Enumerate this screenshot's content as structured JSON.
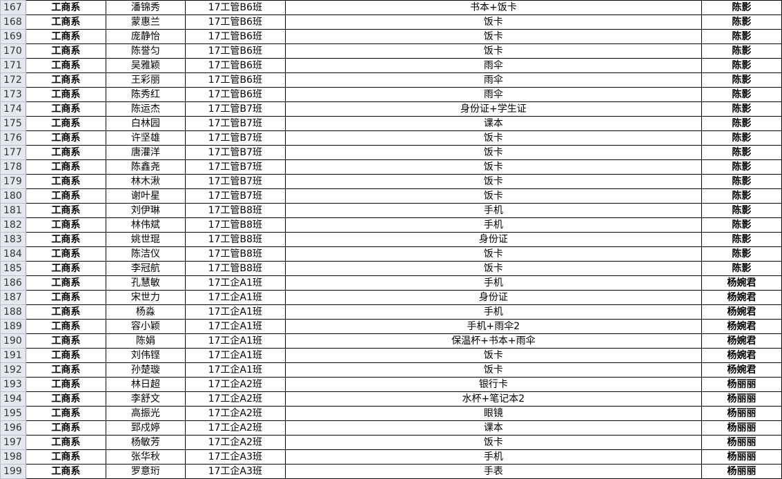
{
  "sheet": {
    "rows": [
      {
        "num": "167",
        "dept": "工商系",
        "name": "潘锦秀",
        "class": "17工管B6班",
        "item": "书本+饭卡",
        "staff": "陈影"
      },
      {
        "num": "168",
        "dept": "工商系",
        "name": "蒙惠兰",
        "class": "17工管B6班",
        "item": "饭卡",
        "staff": "陈影"
      },
      {
        "num": "169",
        "dept": "工商系",
        "name": "庞静怡",
        "class": "17工管B6班",
        "item": "饭卡",
        "staff": "陈影"
      },
      {
        "num": "170",
        "dept": "工商系",
        "name": "陈誉匀",
        "class": "17工管B6班",
        "item": "饭卡",
        "staff": "陈影"
      },
      {
        "num": "171",
        "dept": "工商系",
        "name": "吴雅颖",
        "class": "17工管B6班",
        "item": "雨伞",
        "staff": "陈影"
      },
      {
        "num": "172",
        "dept": "工商系",
        "name": "王彩丽",
        "class": "17工管B6班",
        "item": "雨伞",
        "staff": "陈影"
      },
      {
        "num": "173",
        "dept": "工商系",
        "name": "陈秀红",
        "class": "17工管B6班",
        "item": "雨伞",
        "staff": "陈影"
      },
      {
        "num": "174",
        "dept": "工商系",
        "name": "陈运杰",
        "class": "17工管B7班",
        "item": "身份证+学生证",
        "staff": "陈影"
      },
      {
        "num": "175",
        "dept": "工商系",
        "name": "白林园",
        "class": "17工管B7班",
        "item": "课本",
        "staff": "陈影"
      },
      {
        "num": "176",
        "dept": "工商系",
        "name": "许坚雄",
        "class": "17工管B7班",
        "item": "饭卡",
        "staff": "陈影"
      },
      {
        "num": "177",
        "dept": "工商系",
        "name": "唐灌洋",
        "class": "17工管B7班",
        "item": "饭卡",
        "staff": "陈影"
      },
      {
        "num": "178",
        "dept": "工商系",
        "name": "陈鑫尧",
        "class": "17工管B7班",
        "item": "饭卡",
        "staff": "陈影"
      },
      {
        "num": "179",
        "dept": "工商系",
        "name": "林木湫",
        "class": "17工管B7班",
        "item": "饭卡",
        "staff": "陈影"
      },
      {
        "num": "180",
        "dept": "工商系",
        "name": "谢叶星",
        "class": "17工管B7班",
        "item": "饭卡",
        "staff": "陈影"
      },
      {
        "num": "181",
        "dept": "工商系",
        "name": "刘伊琳",
        "class": "17工管B8班",
        "item": "手机",
        "staff": "陈影"
      },
      {
        "num": "182",
        "dept": "工商系",
        "name": "林伟斌",
        "class": "17工管B8班",
        "item": "手机",
        "staff": "陈影"
      },
      {
        "num": "183",
        "dept": "工商系",
        "name": "姚世琨",
        "class": "17工管B8班",
        "item": "身份证",
        "staff": "陈影"
      },
      {
        "num": "184",
        "dept": "工商系",
        "name": "陈洁仪",
        "class": "17工管B8班",
        "item": "饭卡",
        "staff": "陈影"
      },
      {
        "num": "185",
        "dept": "工商系",
        "name": "李冠航",
        "class": "17工管B8班",
        "item": "饭卡",
        "staff": "陈影"
      },
      {
        "num": "186",
        "dept": "工商系",
        "name": "孔慧敏",
        "class": "17工企A1班",
        "item": "手机",
        "staff": "杨婉君"
      },
      {
        "num": "187",
        "dept": "工商系",
        "name": "宋世力",
        "class": "17工企A1班",
        "item": "身份证",
        "staff": "杨婉君"
      },
      {
        "num": "188",
        "dept": "工商系",
        "name": "杨淼",
        "class": "17工企A1班",
        "item": "手机",
        "staff": "杨婉君"
      },
      {
        "num": "189",
        "dept": "工商系",
        "name": "容小颖",
        "class": "17工企A1班",
        "item": "手机+雨伞2",
        "staff": "杨婉君"
      },
      {
        "num": "190",
        "dept": "工商系",
        "name": "陈娟",
        "class": "17工企A1班",
        "item": "保温杯+书本+雨伞",
        "staff": "杨婉君"
      },
      {
        "num": "191",
        "dept": "工商系",
        "name": "刘伟铿",
        "class": "17工企A1班",
        "item": "饭卡",
        "staff": "杨婉君"
      },
      {
        "num": "192",
        "dept": "工商系",
        "name": "孙楚璇",
        "class": "17工企A1班",
        "item": "饭卡",
        "staff": "杨婉君"
      },
      {
        "num": "193",
        "dept": "工商系",
        "name": "林日超",
        "class": "17工企A2班",
        "item": "银行卡",
        "staff": "杨丽丽"
      },
      {
        "num": "194",
        "dept": "工商系",
        "name": "李舒文",
        "class": "17工企A2班",
        "item": "水杯+笔记本2",
        "staff": "杨丽丽"
      },
      {
        "num": "195",
        "dept": "工商系",
        "name": "高振光",
        "class": "17工企A2班",
        "item": "眼镜",
        "staff": "杨丽丽"
      },
      {
        "num": "196",
        "dept": "工商系",
        "name": "郅戍婷",
        "class": "17工企A2班",
        "item": "课本",
        "staff": "杨丽丽"
      },
      {
        "num": "197",
        "dept": "工商系",
        "name": "杨敏芳",
        "class": "17工企A2班",
        "item": "饭卡",
        "staff": "杨丽丽"
      },
      {
        "num": "198",
        "dept": "工商系",
        "name": "张华秋",
        "class": "17工企A3班",
        "item": "手机",
        "staff": "杨丽丽"
      },
      {
        "num": "199",
        "dept": "工商系",
        "name": "罗意珩",
        "class": "17工企A3班",
        "item": "手表",
        "staff": "杨丽丽"
      }
    ]
  }
}
